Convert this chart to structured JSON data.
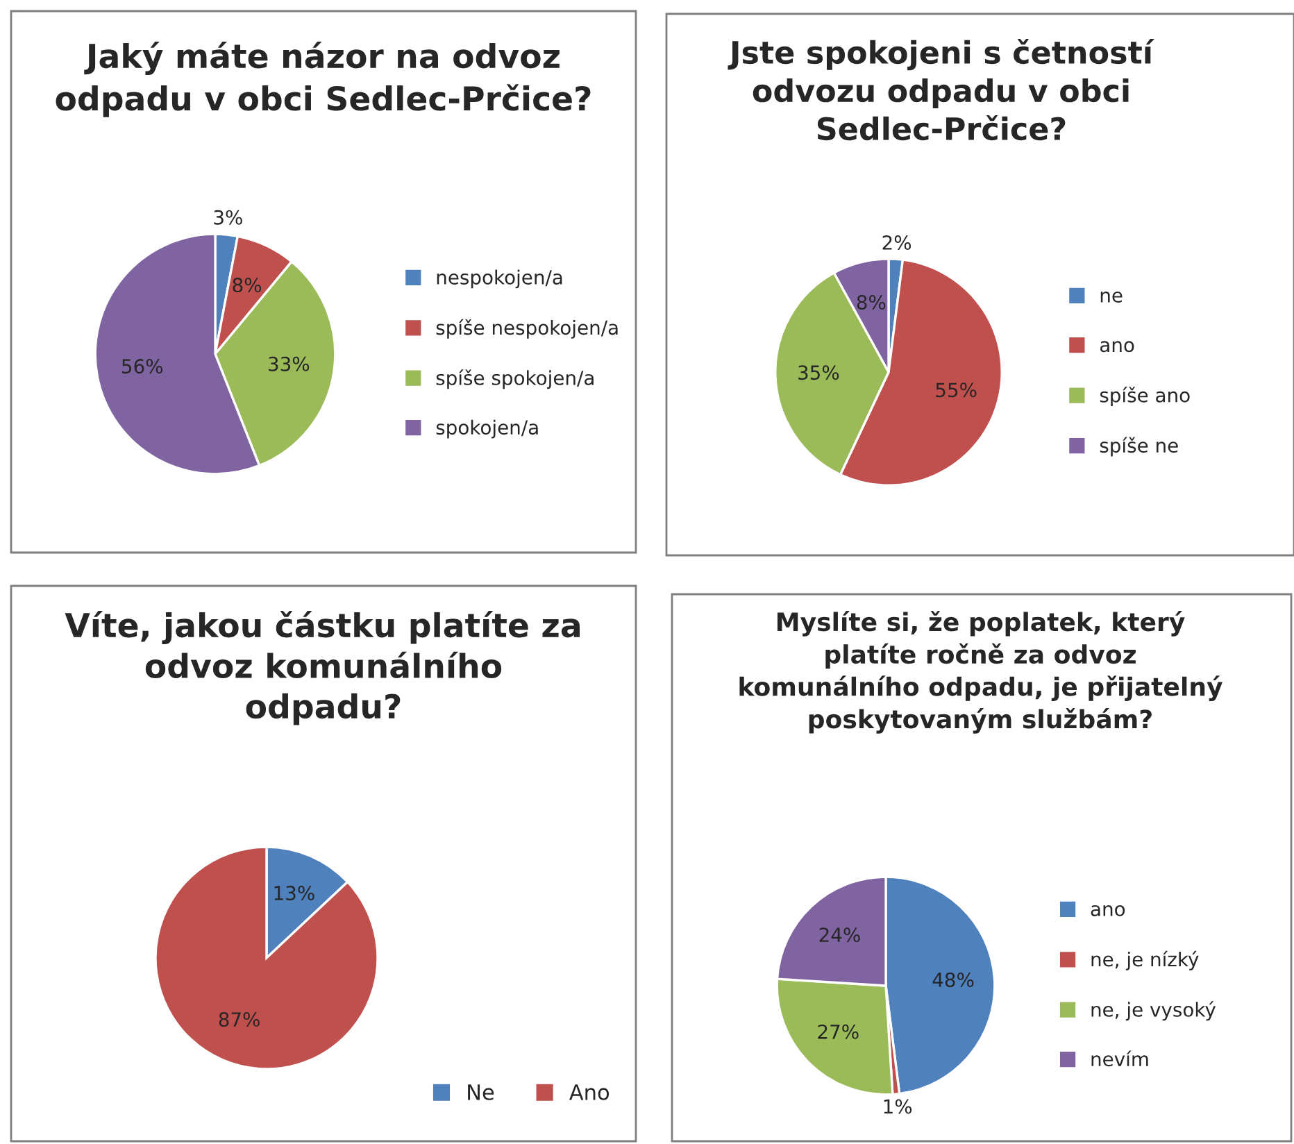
{
  "chart_data": [
    {
      "type": "pie",
      "title": "Jaký máte názor na odvoz\nodpadu v obci Sedlec-Prčice?",
      "categories": [
        "nespokojen/a",
        "spíše nespokojen/a",
        "spíše spokojen/a",
        "spokojen/a"
      ],
      "values": [
        3,
        8,
        33,
        56
      ],
      "value_labels": [
        "3%",
        "8%",
        "33%",
        "56%"
      ],
      "colors": [
        "#4f81bd",
        "#c0504d",
        "#9bbb59",
        "#8064a2"
      ],
      "legend": "right"
    },
    {
      "type": "pie",
      "title": "Jste spokojeni s četností\nodvozu odpadu v obci\nSedlec-Prčice?",
      "categories": [
        "ne",
        "ano",
        "spíše ano",
        "spíše ne"
      ],
      "values": [
        2,
        55,
        35,
        8
      ],
      "value_labels": [
        "2%",
        "55%",
        "35%",
        "8%"
      ],
      "colors": [
        "#4f81bd",
        "#c0504d",
        "#9bbb59",
        "#8064a2"
      ],
      "legend": "right"
    },
    {
      "type": "pie",
      "title": "Víte, jakou částku platíte za\nodvoz komunálního\nodpadu?",
      "categories": [
        "Ne",
        "Ano"
      ],
      "values": [
        13,
        87
      ],
      "value_labels": [
        "13%",
        "87%"
      ],
      "colors": [
        "#4f81bd",
        "#c0504d"
      ],
      "legend": "bottom"
    },
    {
      "type": "pie",
      "title": "Myslíte si, že poplatek, který\nplatíte ročně za odvoz\nkomunálního odpadu, je přijatelný\nposkytovaným službám?",
      "categories": [
        "ano",
        "ne, je nízký",
        "ne, je vysoký",
        "nevím"
      ],
      "values": [
        48,
        1,
        27,
        24
      ],
      "value_labels": [
        "48%",
        "1%",
        "27%",
        "24%"
      ],
      "colors": [
        "#4f81bd",
        "#c0504d",
        "#9bbb59",
        "#8064a2"
      ],
      "legend": "right"
    }
  ]
}
